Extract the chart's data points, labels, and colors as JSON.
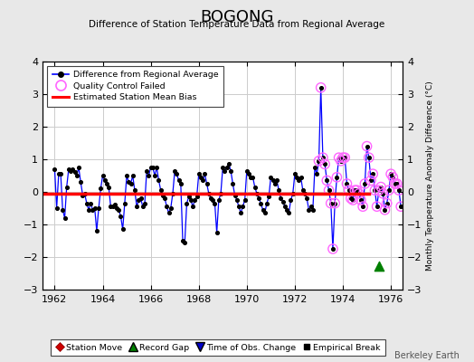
{
  "title": "BOGONG",
  "subtitle": "Difference of Station Temperature Data from Regional Average",
  "ylabel_right": "Monthly Temperature Anomaly Difference (°C)",
  "xlim": [
    1961.5,
    1976.5
  ],
  "ylim": [
    -3,
    4
  ],
  "yticks": [
    -3,
    -2,
    -1,
    0,
    1,
    2,
    3,
    4
  ],
  "xticks": [
    1962,
    1964,
    1966,
    1968,
    1970,
    1972,
    1974,
    1976
  ],
  "bias_line_y": -0.05,
  "bias_line_x_end": 1975.08,
  "line_color": "#0000ff",
  "marker_color": "#000000",
  "qc_circle_color": "#ff66ff",
  "bias_color": "#ff0000",
  "bg_color": "#e8e8e8",
  "plot_bg_color": "#ffffff",
  "grid_color": "#cccccc",
  "watermark": "Berkeley Earth",
  "green_triangle_x": 1975.5,
  "green_triangle_y": -2.28,
  "time_series": [
    [
      1962.0,
      0.7
    ],
    [
      1962.083,
      -0.5
    ],
    [
      1962.167,
      0.55
    ],
    [
      1962.25,
      0.55
    ],
    [
      1962.333,
      -0.55
    ],
    [
      1962.417,
      -0.8
    ],
    [
      1962.5,
      0.15
    ],
    [
      1962.583,
      0.7
    ],
    [
      1962.667,
      0.65
    ],
    [
      1962.75,
      0.7
    ],
    [
      1962.833,
      0.6
    ],
    [
      1962.917,
      0.5
    ],
    [
      1963.0,
      0.75
    ],
    [
      1963.083,
      0.3
    ],
    [
      1963.167,
      -0.1
    ],
    [
      1963.25,
      -0.05
    ],
    [
      1963.333,
      -0.35
    ],
    [
      1963.417,
      -0.55
    ],
    [
      1963.5,
      -0.35
    ],
    [
      1963.583,
      -0.55
    ],
    [
      1963.667,
      -0.5
    ],
    [
      1963.75,
      -1.2
    ],
    [
      1963.833,
      -0.5
    ],
    [
      1963.917,
      0.1
    ],
    [
      1964.0,
      0.5
    ],
    [
      1964.083,
      0.35
    ],
    [
      1964.167,
      0.25
    ],
    [
      1964.25,
      0.15
    ],
    [
      1964.333,
      -0.45
    ],
    [
      1964.417,
      -0.45
    ],
    [
      1964.5,
      -0.4
    ],
    [
      1964.583,
      -0.5
    ],
    [
      1964.667,
      -0.55
    ],
    [
      1964.75,
      -0.75
    ],
    [
      1964.833,
      -1.15
    ],
    [
      1964.917,
      -0.35
    ],
    [
      1965.0,
      0.5
    ],
    [
      1965.083,
      0.3
    ],
    [
      1965.167,
      0.25
    ],
    [
      1965.25,
      0.5
    ],
    [
      1965.333,
      0.05
    ],
    [
      1965.417,
      -0.45
    ],
    [
      1965.5,
      -0.25
    ],
    [
      1965.583,
      -0.2
    ],
    [
      1965.667,
      -0.45
    ],
    [
      1965.75,
      -0.35
    ],
    [
      1965.833,
      0.65
    ],
    [
      1965.917,
      0.5
    ],
    [
      1966.0,
      0.75
    ],
    [
      1966.083,
      0.75
    ],
    [
      1966.167,
      0.5
    ],
    [
      1966.25,
      0.75
    ],
    [
      1966.333,
      0.35
    ],
    [
      1966.417,
      0.05
    ],
    [
      1966.5,
      -0.1
    ],
    [
      1966.583,
      -0.2
    ],
    [
      1966.667,
      -0.45
    ],
    [
      1966.75,
      -0.65
    ],
    [
      1966.833,
      -0.5
    ],
    [
      1966.917,
      -0.05
    ],
    [
      1967.0,
      0.65
    ],
    [
      1967.083,
      0.55
    ],
    [
      1967.167,
      0.35
    ],
    [
      1967.25,
      0.25
    ],
    [
      1967.333,
      -1.5
    ],
    [
      1967.417,
      -1.55
    ],
    [
      1967.5,
      -0.35
    ],
    [
      1967.583,
      -0.15
    ],
    [
      1967.667,
      -0.25
    ],
    [
      1967.75,
      -0.45
    ],
    [
      1967.833,
      -0.25
    ],
    [
      1967.917,
      -0.15
    ],
    [
      1968.0,
      0.55
    ],
    [
      1968.083,
      0.45
    ],
    [
      1968.167,
      0.35
    ],
    [
      1968.25,
      0.55
    ],
    [
      1968.333,
      0.25
    ],
    [
      1968.417,
      -0.05
    ],
    [
      1968.5,
      -0.2
    ],
    [
      1968.583,
      -0.25
    ],
    [
      1968.667,
      -0.35
    ],
    [
      1968.75,
      -1.25
    ],
    [
      1968.833,
      -0.25
    ],
    [
      1968.917,
      -0.05
    ],
    [
      1969.0,
      0.75
    ],
    [
      1969.083,
      0.65
    ],
    [
      1969.167,
      0.75
    ],
    [
      1969.25,
      0.85
    ],
    [
      1969.333,
      0.65
    ],
    [
      1969.417,
      0.25
    ],
    [
      1969.5,
      -0.1
    ],
    [
      1969.583,
      -0.25
    ],
    [
      1969.667,
      -0.45
    ],
    [
      1969.75,
      -0.65
    ],
    [
      1969.833,
      -0.45
    ],
    [
      1969.917,
      -0.25
    ],
    [
      1970.0,
      0.65
    ],
    [
      1970.083,
      0.55
    ],
    [
      1970.167,
      0.45
    ],
    [
      1970.25,
      0.45
    ],
    [
      1970.333,
      0.15
    ],
    [
      1970.417,
      -0.05
    ],
    [
      1970.5,
      -0.2
    ],
    [
      1970.583,
      -0.35
    ],
    [
      1970.667,
      -0.55
    ],
    [
      1970.75,
      -0.65
    ],
    [
      1970.833,
      -0.35
    ],
    [
      1970.917,
      -0.15
    ],
    [
      1971.0,
      0.45
    ],
    [
      1971.083,
      0.35
    ],
    [
      1971.167,
      0.25
    ],
    [
      1971.25,
      0.35
    ],
    [
      1971.333,
      0.05
    ],
    [
      1971.417,
      -0.2
    ],
    [
      1971.5,
      -0.3
    ],
    [
      1971.583,
      -0.45
    ],
    [
      1971.667,
      -0.55
    ],
    [
      1971.75,
      -0.65
    ],
    [
      1971.833,
      -0.25
    ],
    [
      1971.917,
      -0.05
    ],
    [
      1972.0,
      0.55
    ],
    [
      1972.083,
      0.45
    ],
    [
      1972.167,
      0.35
    ],
    [
      1972.25,
      0.45
    ],
    [
      1972.333,
      0.05
    ],
    [
      1972.417,
      -0.05
    ],
    [
      1972.5,
      -0.2
    ],
    [
      1972.583,
      -0.55
    ],
    [
      1972.667,
      -0.45
    ],
    [
      1972.75,
      -0.55
    ],
    [
      1972.833,
      0.75
    ],
    [
      1972.917,
      0.55
    ],
    [
      1973.0,
      0.95
    ],
    [
      1973.083,
      3.2
    ],
    [
      1973.167,
      1.05
    ],
    [
      1973.25,
      0.85
    ],
    [
      1973.333,
      0.35
    ],
    [
      1973.417,
      0.05
    ],
    [
      1973.5,
      -0.35
    ],
    [
      1973.583,
      -1.75
    ],
    [
      1973.667,
      -0.35
    ],
    [
      1973.75,
      0.45
    ],
    [
      1973.833,
      1.05
    ],
    [
      1973.917,
      0.95
    ],
    [
      1974.0,
      1.05
    ],
    [
      1974.083,
      1.05
    ],
    [
      1974.167,
      0.25
    ],
    [
      1974.25,
      0.05
    ],
    [
      1974.333,
      -0.2
    ],
    [
      1974.417,
      -0.25
    ],
    [
      1974.5,
      0.05
    ],
    [
      1974.583,
      0.05
    ],
    [
      1974.667,
      -0.05
    ],
    [
      1974.75,
      -0.25
    ],
    [
      1974.833,
      -0.45
    ],
    [
      1974.917,
      0.25
    ],
    [
      1975.0,
      1.4
    ],
    [
      1975.083,
      1.05
    ],
    [
      1975.167,
      0.35
    ],
    [
      1975.25,
      0.55
    ],
    [
      1975.333,
      0.05
    ],
    [
      1975.417,
      -0.45
    ],
    [
      1975.5,
      0.05
    ],
    [
      1975.583,
      0.15
    ],
    [
      1975.667,
      -0.05
    ],
    [
      1975.75,
      -0.55
    ],
    [
      1975.833,
      -0.35
    ],
    [
      1975.917,
      0.05
    ],
    [
      1976.0,
      0.55
    ],
    [
      1976.083,
      0.45
    ],
    [
      1976.167,
      0.25
    ],
    [
      1976.25,
      0.25
    ],
    [
      1976.333,
      0.05
    ],
    [
      1976.417,
      -0.45
    ]
  ],
  "qc_failed_x_start": 1973.0,
  "legend_line_label": "Difference from Regional Average",
  "legend_qc_label": "Quality Control Failed",
  "legend_bias_label": "Estimated Station Mean Bias",
  "legend_station_move": "Station Move",
  "legend_record_gap": "Record Gap",
  "legend_obs_change": "Time of Obs. Change",
  "legend_emp_break": "Empirical Break"
}
